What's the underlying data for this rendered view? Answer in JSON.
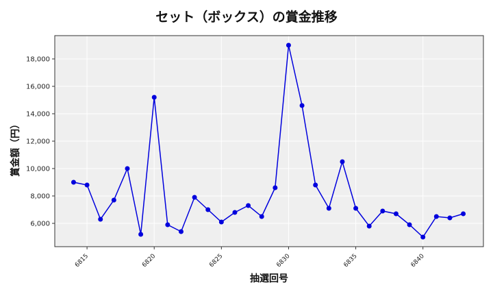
{
  "chart_data": {
    "type": "line",
    "title": "セット（ボックス）の賞金推移",
    "xlabel": "抽選回号",
    "ylabel": "賞金額（円）",
    "x": [
      6814,
      6815,
      6816,
      6817,
      6818,
      6819,
      6820,
      6821,
      6822,
      6823,
      6824,
      6825,
      6826,
      6827,
      6828,
      6829,
      6830,
      6831,
      6832,
      6833,
      6834,
      6835,
      6836,
      6837,
      6838,
      6839,
      6840,
      6841,
      6842,
      6843
    ],
    "series": [
      {
        "name": "セット（ボックス）",
        "color": "#0000dd",
        "values": [
          9000,
          8800,
          6300,
          7700,
          10000,
          5200,
          15200,
          5900,
          5400,
          7900,
          7000,
          6100,
          6800,
          7300,
          6500,
          8600,
          19000,
          14600,
          8800,
          7100,
          10500,
          7100,
          5800,
          6900,
          6700,
          5900,
          5000,
          6500,
          6400,
          6700
        ]
      }
    ],
    "xticks": [
      6815,
      6820,
      6825,
      6830,
      6835,
      6840
    ],
    "yticks": [
      6000,
      8000,
      10000,
      12000,
      14000,
      16000,
      18000
    ],
    "ytick_labels": [
      "6,000",
      "8,000",
      "10,000",
      "12,000",
      "14,000",
      "16,000",
      "18,000"
    ],
    "xlim": [
      6812.6,
      6844.5
    ],
    "ylim": [
      4300,
      19700
    ],
    "grid": true,
    "legend": false,
    "background": "#efefef"
  }
}
